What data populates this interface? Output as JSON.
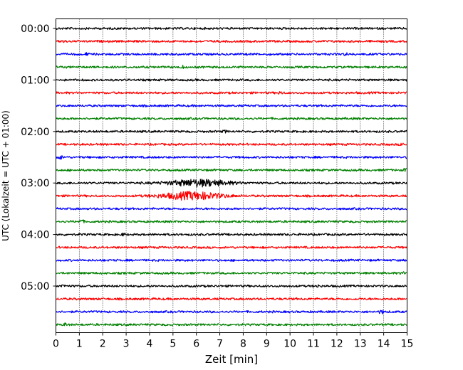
{
  "chart_data": {
    "type": "line",
    "subtype": "seismogram-dayplot",
    "title": "",
    "xlabel": "Zeit  [min]",
    "ylabel": "UTC (Lokalzeit = UTC + 01:00)",
    "xlim": [
      0,
      15
    ],
    "x_ticks": [
      0,
      1,
      2,
      3,
      4,
      5,
      6,
      7,
      8,
      9,
      10,
      11,
      12,
      13,
      14,
      15
    ],
    "x_tick_labels": [
      "0",
      "1",
      "2",
      "3",
      "4",
      "5",
      "6",
      "7",
      "8",
      "9",
      "10",
      "11",
      "12",
      "13",
      "14",
      "15"
    ],
    "y_tick_labels": [
      "00:00",
      "01:00",
      "02:00",
      "03:00",
      "04:00",
      "05:00"
    ],
    "y_tick_rows": [
      0,
      4,
      8,
      12,
      16,
      20
    ],
    "vertical_grid": true,
    "grid_style": "dotted",
    "row_interval_minutes": 15,
    "colors": [
      "#000000",
      "#ff0000",
      "#0000ff",
      "#008000"
    ],
    "rows": [
      {
        "start": "00:00",
        "events": []
      },
      {
        "start": "00:15",
        "events": [
          {
            "t": 0.3,
            "amp": 1.2
          }
        ]
      },
      {
        "start": "00:30",
        "events": [
          {
            "t": 1.3,
            "amp": 1.3
          },
          {
            "t": 12.4,
            "amp": 1.2
          }
        ]
      },
      {
        "start": "00:45",
        "events": [
          {
            "t": 5.4,
            "amp": 1.3
          }
        ]
      },
      {
        "start": "01:00",
        "events": []
      },
      {
        "start": "01:15",
        "events": [
          {
            "t": 9.6,
            "amp": 1.5
          }
        ]
      },
      {
        "start": "01:30",
        "events": []
      },
      {
        "start": "01:45",
        "events": []
      },
      {
        "start": "02:00",
        "events": [
          {
            "t": 7.2,
            "amp": 1.3
          }
        ]
      },
      {
        "start": "02:15",
        "events": [
          {
            "t": 14.8,
            "amp": 1.6
          }
        ]
      },
      {
        "start": "02:30",
        "events": [
          {
            "t": 0.2,
            "amp": 2.2
          }
        ]
      },
      {
        "start": "02:45",
        "events": [
          {
            "t": 14.9,
            "amp": 1.4
          }
        ]
      },
      {
        "start": "03:00",
        "events": [
          {
            "t": 6.1,
            "amp": 4.5
          }
        ]
      },
      {
        "start": "03:15",
        "events": [
          {
            "t": 5.8,
            "amp": 5.0
          }
        ]
      },
      {
        "start": "03:30",
        "events": []
      },
      {
        "start": "03:45",
        "events": [
          {
            "t": 1.1,
            "amp": 2.0
          }
        ]
      },
      {
        "start": "04:00",
        "events": [
          {
            "t": 2.9,
            "amp": 1.3
          }
        ]
      },
      {
        "start": "04:15",
        "events": []
      },
      {
        "start": "04:30",
        "events": []
      },
      {
        "start": "04:45",
        "events": [
          {
            "t": 14.8,
            "amp": 1.2
          }
        ]
      },
      {
        "start": "05:00",
        "events": [
          {
            "t": 0.3,
            "amp": 1.4
          },
          {
            "t": 11.2,
            "amp": 1.2
          }
        ]
      },
      {
        "start": "05:15",
        "events": []
      },
      {
        "start": "05:30",
        "events": [
          {
            "t": 13.9,
            "amp": 2.4
          }
        ]
      },
      {
        "start": "05:45",
        "events": [
          {
            "t": 0.4,
            "amp": 1.6
          }
        ]
      }
    ]
  }
}
